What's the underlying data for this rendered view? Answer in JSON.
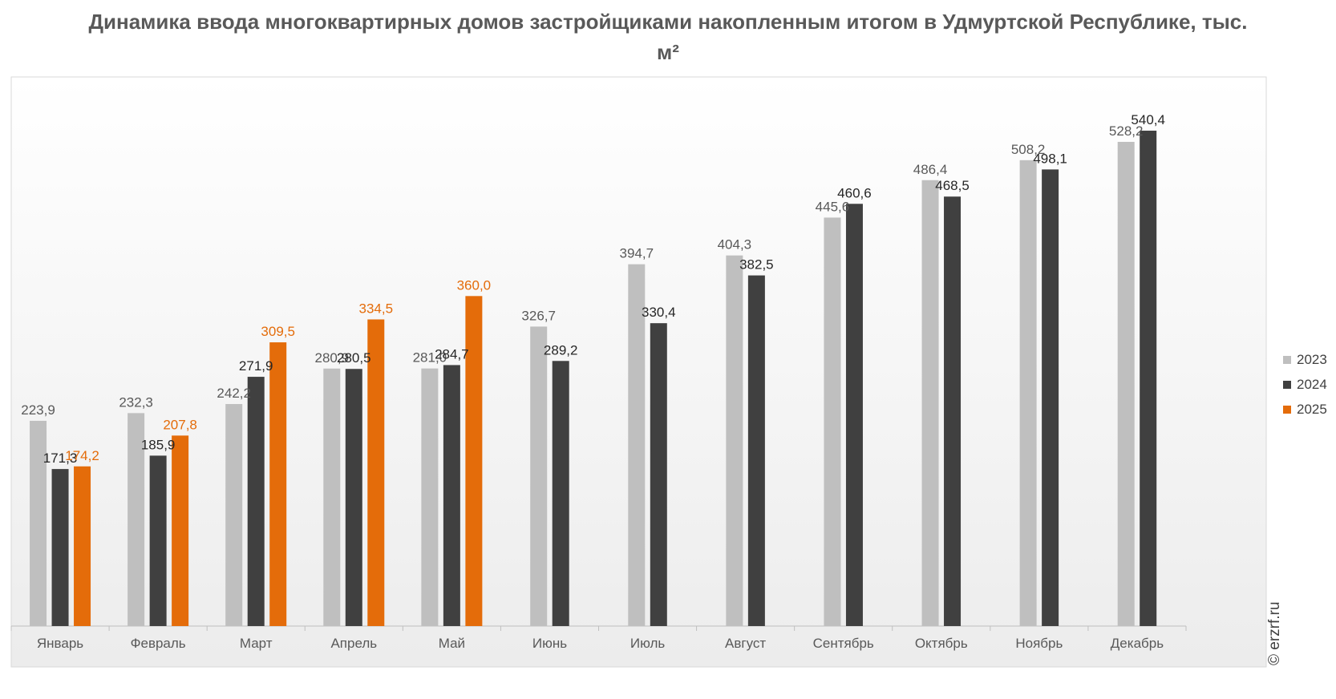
{
  "page": {
    "title": "Динамика ввода многоквартирных домов застройщиками накопленным итогом в Удмуртской Республике, тыс. м²",
    "watermark": "© erzrf.ru"
  },
  "chart_data": {
    "type": "bar",
    "title": "Динамика ввода многоквартирных домов застройщиками накопленным итогом в Удмуртской Республике, тыс. м²",
    "categories": [
      "Январь",
      "Февраль",
      "Март",
      "Апрель",
      "Май",
      "Июнь",
      "Июль",
      "Август",
      "Сентябрь",
      "Октябрь",
      "Ноябрь",
      "Декабрь"
    ],
    "series": [
      {
        "name": "2023",
        "color": "#bfbfbf",
        "label_color": "#595959",
        "values": [
          223.9,
          232.3,
          242.2,
          280.9,
          281.0,
          326.7,
          394.7,
          404.3,
          445.6,
          486.4,
          508.2,
          528.2
        ],
        "labels": [
          "223,9",
          "232,3",
          "242,2",
          "280,9",
          "281,0",
          "326,7",
          "394,7",
          "404,3",
          "445,6",
          "486,4",
          "508,2",
          "528,2"
        ]
      },
      {
        "name": "2024",
        "color": "#404040",
        "label_color": "#262626",
        "values": [
          171.3,
          185.9,
          271.9,
          280.5,
          284.7,
          289.2,
          330.4,
          382.5,
          460.6,
          468.5,
          498.1,
          540.4
        ],
        "labels": [
          "171,3",
          "185,9",
          "271,9",
          "280,5",
          "284,7",
          "289,2",
          "330,4",
          "382,5",
          "460,6",
          "468,5",
          "498,1",
          "540,4"
        ]
      },
      {
        "name": "2025",
        "color": "#e46c0a",
        "label_color": "#e46c0a",
        "values": [
          174.2,
          207.8,
          309.5,
          334.5,
          360.0,
          null,
          null,
          null,
          null,
          null,
          null,
          null
        ],
        "labels": [
          "174,2",
          "207,8",
          "309,5",
          "334,5",
          "360,0",
          null,
          null,
          null,
          null,
          null,
          null,
          null
        ]
      }
    ],
    "ylim": [
      0,
      599
    ],
    "legend": "right",
    "grid": false
  }
}
